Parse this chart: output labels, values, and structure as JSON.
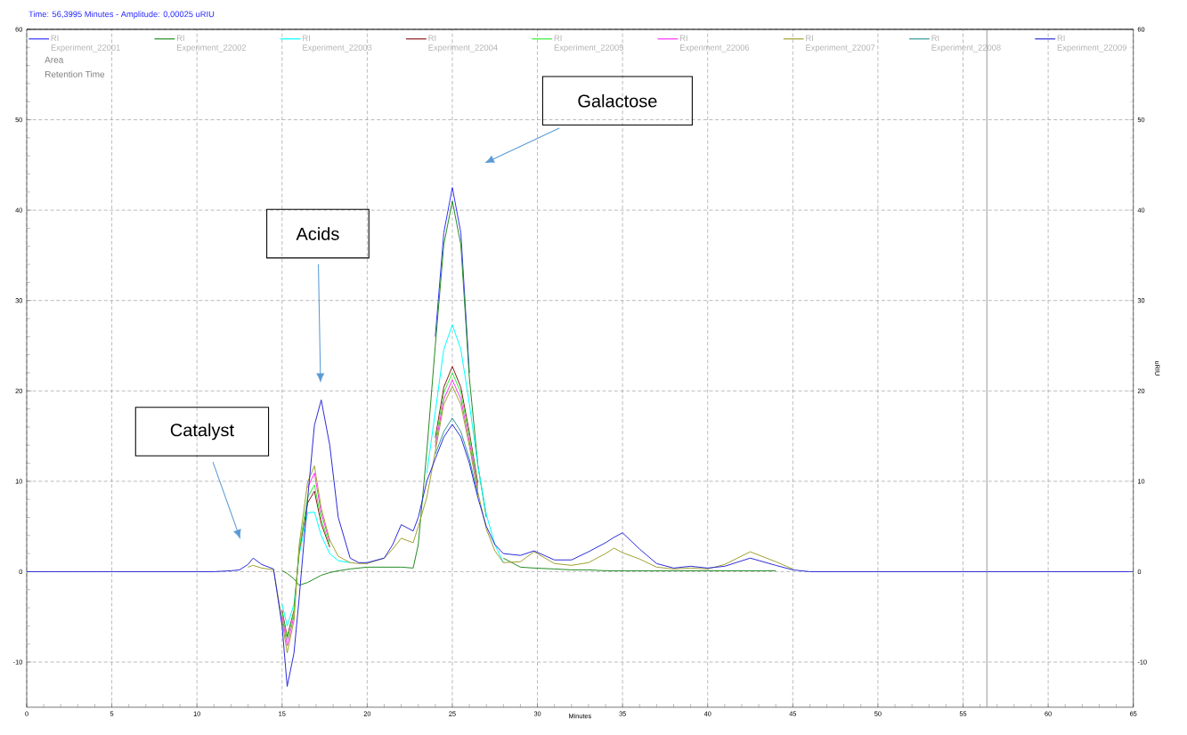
{
  "chart_data": {
    "type": "line",
    "title": "Time:  56,3995 Minutes - Amplitude:  0,00025 uRIU",
    "xlabel": "Minutes",
    "y2label": "uRIU",
    "x": [
      0,
      9,
      11,
      12,
      12.5,
      13,
      13.3,
      13.8,
      14.5,
      15,
      15.3,
      15.7,
      16,
      16.5,
      16.9,
      17.3,
      17.8,
      18.3,
      19,
      19.5,
      20,
      21,
      21.5,
      22,
      22.7,
      23,
      23.5,
      24,
      24.5,
      25,
      25.5,
      26,
      26.5,
      27,
      27.5,
      28,
      29,
      29.8,
      31,
      32,
      33,
      34,
      34.5,
      35,
      36,
      37,
      38,
      39,
      40,
      41,
      42.5,
      44,
      45,
      46,
      65
    ],
    "series": [
      {
        "name": "RI Experiment_22001",
        "color": "#3333ff",
        "x": [
          24,
          24.5,
          25,
          25.5,
          26
        ],
        "values": [
          26,
          37.5,
          42.5,
          37.5,
          22
        ]
      },
      {
        "name": "RI Experiment_22002",
        "color": "#228b22",
        "values": [
          null,
          null,
          null,
          null,
          null,
          null,
          null,
          null,
          null,
          0.1,
          -0.2,
          -0.8,
          -1.5,
          -1.2,
          -0.8,
          -0.4,
          -0.1,
          0.1,
          0.3,
          0.4,
          0.5,
          0.5,
          0.5,
          0.5,
          0.4,
          3,
          13.3,
          25,
          36.2,
          41,
          36.2,
          21.5,
          11.8,
          6,
          null,
          1.5,
          0.5,
          0.4,
          0.3,
          0.2,
          0.2,
          0.1,
          0.1,
          0.1,
          0.1,
          0.1,
          0.1,
          0.1,
          0.1,
          0.1,
          0.1,
          0.1,
          null,
          null,
          null
        ]
      },
      {
        "name": "RI Experiment_22003",
        "color": "#00ffff",
        "values": [
          null,
          null,
          null,
          null,
          null,
          null,
          null,
          null,
          null,
          -3.6,
          -6,
          -3.6,
          1.8,
          6.5,
          6.6,
          4,
          2,
          1.2,
          1,
          null,
          null,
          null,
          null,
          null,
          null,
          null,
          10.9,
          17.7,
          24.6,
          27.3,
          24.6,
          18.6,
          11.7,
          6.3,
          3,
          1,
          null,
          null,
          null,
          null,
          null,
          null,
          null,
          null,
          null,
          null,
          null,
          null,
          null,
          null,
          null,
          null,
          null,
          null,
          null
        ]
      },
      {
        "name": "RI Experiment_22004",
        "color": "#8b1a1a",
        "values": [
          null,
          null,
          null,
          null,
          null,
          null,
          null,
          null,
          null,
          -4.3,
          -7.2,
          -4.3,
          2.2,
          7.6,
          8.9,
          5.3,
          2.7,
          null,
          null,
          null,
          null,
          null,
          null,
          null,
          null,
          null,
          null,
          14.8,
          20.4,
          22.7,
          20.4,
          15.4,
          9.8,
          null,
          null,
          null,
          null,
          null,
          null,
          null,
          null,
          null,
          null,
          null,
          null,
          null,
          null,
          null,
          null,
          null,
          null,
          null,
          null,
          null,
          null
        ]
      },
      {
        "name": "RI Experiment_22005",
        "color": "#33ee33",
        "values": [
          null,
          null,
          null,
          null,
          null,
          null,
          null,
          null,
          null,
          -4.5,
          -7.5,
          -4.5,
          2.4,
          8.2,
          9.6,
          5.8,
          2.9,
          null,
          null,
          null,
          null,
          null,
          null,
          null,
          null,
          null,
          null,
          14.3,
          19.8,
          22,
          19.8,
          15,
          9.5,
          null,
          null,
          null,
          null,
          null,
          null,
          null,
          null,
          null,
          null,
          null,
          null,
          null,
          null,
          null,
          null,
          null,
          null,
          null,
          null,
          null,
          null
        ]
      },
      {
        "name": "RI Experiment_22006",
        "color": "#ff33ff",
        "values": [
          null,
          null,
          null,
          null,
          null,
          null,
          null,
          null,
          null,
          -4.9,
          -8.2,
          -4.9,
          null,
          9.3,
          10.9,
          6.5,
          3.3,
          null,
          null,
          null,
          null,
          null,
          null,
          null,
          null,
          null,
          null,
          13.8,
          19.1,
          21.2,
          19.1,
          14.4,
          9.1,
          null,
          null,
          null,
          null,
          null,
          null,
          null,
          null,
          null,
          null,
          null,
          null,
          null,
          null,
          null,
          null,
          null,
          null,
          null,
          null,
          null,
          null
        ]
      },
      {
        "name": "RI Experiment_22007",
        "color": "#a0a030",
        "values": [
          null,
          null,
          null,
          null,
          null,
          0.5,
          0.7,
          0.4,
          0.2,
          -5.4,
          -9,
          -5.4,
          2.9,
          9.9,
          11.7,
          7,
          3.5,
          1.7,
          1,
          0.9,
          0.9,
          1.5,
          2.5,
          3.7,
          3.2,
          5,
          8.2,
          13.3,
          18.5,
          20.5,
          18.5,
          13.9,
          8.8,
          4.7,
          2.3,
          1,
          1.1,
          2.2,
          0.9,
          0.7,
          1,
          2,
          2.6,
          2.1,
          1.4,
          0.5,
          0.3,
          0.4,
          0.3,
          0.8,
          2.2,
          1.1,
          0.3,
          null,
          null
        ]
      },
      {
        "name": "RI Experiment_22008",
        "color": "#339999",
        "values": [
          null,
          null,
          null,
          null,
          null,
          null,
          null,
          null,
          null,
          null,
          null,
          null,
          null,
          null,
          null,
          null,
          null,
          null,
          null,
          null,
          null,
          null,
          null,
          null,
          null,
          null,
          null,
          13,
          15.5,
          17,
          15.5,
          12.5,
          8.5,
          null,
          null,
          null,
          null,
          null,
          null,
          null,
          null,
          null,
          null,
          null,
          null,
          null,
          null,
          null,
          null,
          null,
          null,
          null,
          null,
          null,
          null
        ]
      },
      {
        "name": "RI Experiment_22009",
        "color": "#2b2bd9",
        "values": [
          0,
          0,
          0,
          0.1,
          0.2,
          0.8,
          1.5,
          0.8,
          0.3,
          -6,
          -12.7,
          -9,
          -3,
          8,
          16.2,
          19,
          14,
          6,
          1.5,
          1,
          1,
          1.5,
          3,
          5.2,
          4.5,
          6,
          10,
          12.5,
          14.9,
          16.3,
          14.9,
          12,
          8.2,
          5,
          3,
          2,
          1.8,
          2.3,
          1.3,
          1.3,
          2.2,
          3.2,
          3.8,
          4.3,
          2.5,
          0.9,
          0.4,
          0.6,
          0.4,
          0.6,
          1.5,
          0.7,
          0.2,
          0,
          0
        ]
      }
    ],
    "xlim": [
      0,
      65
    ],
    "xticks": [
      0,
      5,
      10,
      15,
      20,
      25,
      30,
      35,
      40,
      45,
      50,
      55,
      60,
      65
    ],
    "ylim": [
      -15,
      60
    ],
    "yticks": [
      -10,
      0,
      10,
      20,
      30,
      40,
      50,
      60
    ],
    "y2lim": [
      -15,
      60
    ],
    "y2ticks": [
      -10,
      0,
      10,
      20,
      30,
      40,
      50,
      60
    ],
    "ref_lines": [
      {
        "axis": "x",
        "value": 56.3995,
        "color": "#808080"
      }
    ],
    "annotations": [
      "Catalyst",
      "Acids",
      "Galactose",
      "Area",
      "Retention Time"
    ],
    "grid": true,
    "legend": "top",
    "marker": "none",
    "line_style": "solid"
  }
}
